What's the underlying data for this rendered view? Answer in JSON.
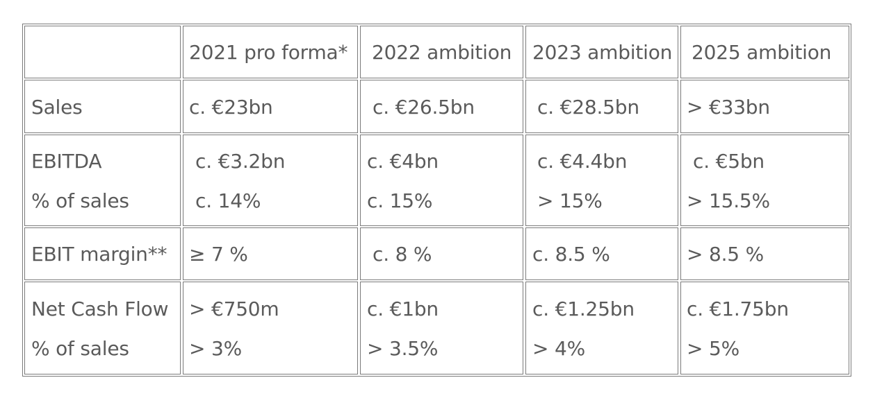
{
  "header": {
    "corner": "",
    "cols": [
      "2021 pro forma*",
      "2022 ambition",
      "2023 ambition",
      "2025 ambition"
    ]
  },
  "rows": {
    "sales": {
      "label": "Sales",
      "values": [
        "c. €23bn",
        "c. €26.5bn",
        "c. €28.5bn",
        "> €33bn"
      ]
    },
    "ebitda": {
      "label": "EBITDA",
      "sublabel": "% of sales",
      "values": [
        "c. €3.2bn",
        "c. €4bn",
        "c. €4.4bn",
        "c. €5bn"
      ],
      "subvalues": [
        "c. 14%",
        "c. 15%",
        "> 15%",
        "> 15.5%"
      ]
    },
    "ebit": {
      "label": "EBIT margin**",
      "values": [
        "≥ 7 %",
        "c. 8 %",
        "c. 8.5 %",
        "> 8.5 %"
      ]
    },
    "ncf": {
      "label": "Net Cash Flow",
      "sublabel": "% of sales",
      "values": [
        "> €750m",
        "c. €1bn",
        "c. €1.25bn",
        "c. €1.75bn"
      ],
      "subvalues": [
        "> 3%",
        "> 3.5%",
        "> 4%",
        "> 5%"
      ]
    }
  }
}
